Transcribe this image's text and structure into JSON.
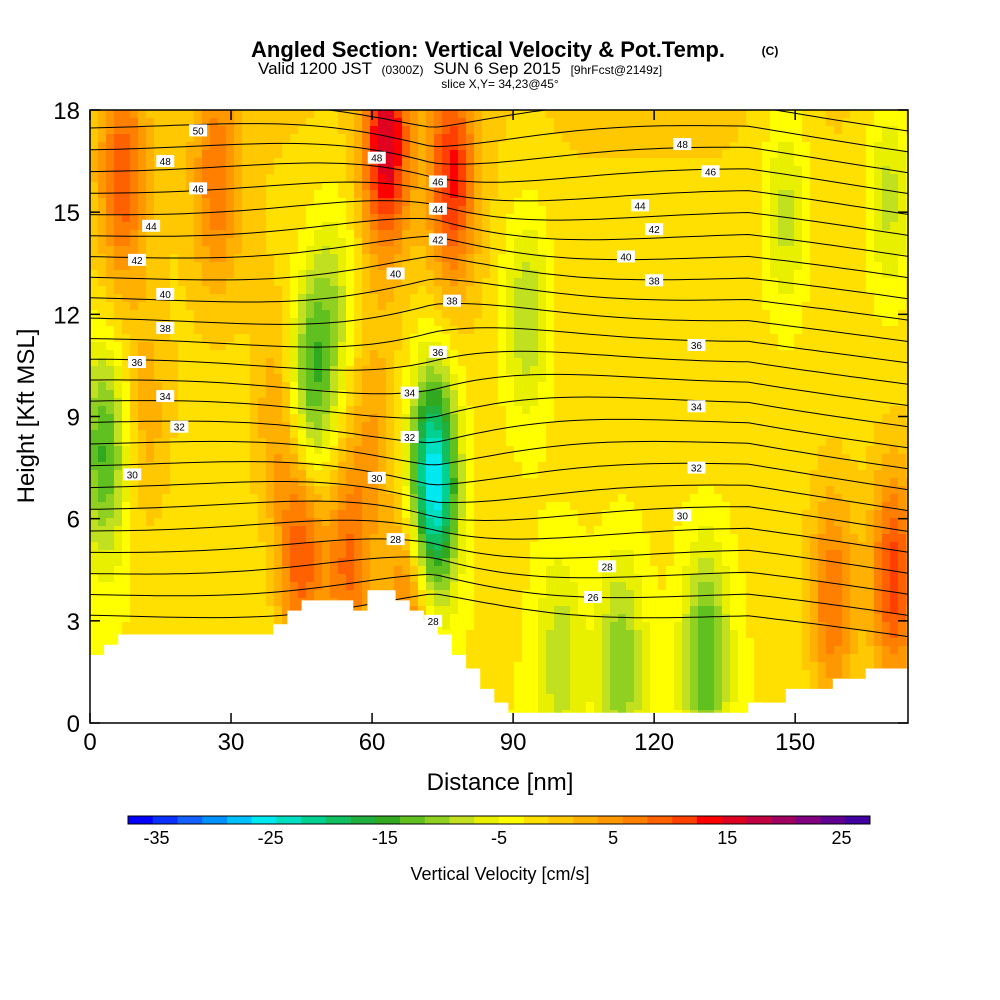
{
  "chart_data": {
    "type": "contour",
    "title": "Angled Section: Vertical Velocity & Pot.Temp.",
    "title_unit": "(C)",
    "subtitle": {
      "a": "Valid 1200 JST",
      "b": "(0300Z)",
      "c": "SUN 6 Sep 2015",
      "d": "[9hrFcst@2149z]"
    },
    "slice_label": "slice X,Y= 34,23@45°",
    "xlabel": "Distance [nm]",
    "ylabel": "Height [Kft MSL]",
    "xlim": [
      0,
      174
    ],
    "ylim": [
      0,
      18
    ],
    "x_ticks": [
      "0",
      "30",
      "60",
      "90",
      "120",
      "150"
    ],
    "y_ticks": [
      "0",
      "3",
      "6",
      "9",
      "12",
      "15",
      "18"
    ],
    "x_tick_values": [
      0,
      30,
      60,
      90,
      120,
      150
    ],
    "y_tick_values": [
      0,
      3,
      6,
      9,
      12,
      15,
      18
    ],
    "colorbar": {
      "label": "Vertical Velocity [cm/s]",
      "range": [
        -37.5,
        27.5
      ],
      "step": 2.5,
      "ticks": [
        "-35",
        "-25",
        "-15",
        "-5",
        "5",
        "15",
        "25"
      ],
      "tick_values": [
        -35,
        -25,
        -15,
        -5,
        5,
        15,
        25
      ],
      "colors": [
        "#0000ff",
        "#0a30ff",
        "#1460ff",
        "#0090ff",
        "#00c0ff",
        "#00e8f0",
        "#00e0c0",
        "#00d090",
        "#10c060",
        "#20b040",
        "#30a820",
        "#60c020",
        "#90d020",
        "#c0e020",
        "#e8f000",
        "#ffff00",
        "#ffe000",
        "#ffc800",
        "#ffb000",
        "#ff9800",
        "#ff8000",
        "#ff6000",
        "#ff4000",
        "#ff0000",
        "#e00020",
        "#c00040",
        "#a00060",
        "#800080",
        "#600090",
        "#4000a0"
      ]
    },
    "isentrope_labels": [
      "26",
      "28",
      "30",
      "32",
      "34",
      "36",
      "38",
      "40",
      "42",
      "44",
      "46",
      "48",
      "50"
    ],
    "isentrope_label_positions": [
      {
        "t": "50",
        "x": 23,
        "z": 17.4
      },
      {
        "t": "48",
        "x": 16,
        "z": 16.5
      },
      {
        "t": "46",
        "x": 23,
        "z": 15.7
      },
      {
        "t": "44",
        "x": 13,
        "z": 14.6
      },
      {
        "t": "42",
        "x": 10,
        "z": 13.6
      },
      {
        "t": "40",
        "x": 16,
        "z": 12.6
      },
      {
        "t": "38",
        "x": 16,
        "z": 11.6
      },
      {
        "t": "36",
        "x": 10,
        "z": 10.6
      },
      {
        "t": "34",
        "x": 16,
        "z": 9.6
      },
      {
        "t": "32",
        "x": 19,
        "z": 8.7
      },
      {
        "t": "30",
        "x": 9,
        "z": 7.3
      },
      {
        "t": "48",
        "x": 61,
        "z": 16.6
      },
      {
        "t": "46",
        "x": 74,
        "z": 15.9
      },
      {
        "t": "44",
        "x": 74,
        "z": 15.1
      },
      {
        "t": "42",
        "x": 74,
        "z": 14.2
      },
      {
        "t": "40",
        "x": 65,
        "z": 13.2
      },
      {
        "t": "38",
        "x": 77,
        "z": 12.4
      },
      {
        "t": "36",
        "x": 74,
        "z": 10.9
      },
      {
        "t": "34",
        "x": 68,
        "z": 9.7
      },
      {
        "t": "32",
        "x": 68,
        "z": 8.4
      },
      {
        "t": "30",
        "x": 61,
        "z": 7.2
      },
      {
        "t": "28",
        "x": 65,
        "z": 5.4
      },
      {
        "t": "28",
        "x": 73,
        "z": 3.0
      },
      {
        "t": "48",
        "x": 126,
        "z": 17.0
      },
      {
        "t": "46",
        "x": 132,
        "z": 16.2
      },
      {
        "t": "44",
        "x": 117,
        "z": 15.2
      },
      {
        "t": "42",
        "x": 120,
        "z": 14.5
      },
      {
        "t": "40",
        "x": 114,
        "z": 13.7
      },
      {
        "t": "38",
        "x": 120,
        "z": 13.0
      },
      {
        "t": "36",
        "x": 129,
        "z": 11.1
      },
      {
        "t": "34",
        "x": 129,
        "z": 9.3
      },
      {
        "t": "32",
        "x": 129,
        "z": 7.5
      },
      {
        "t": "30",
        "x": 126,
        "z": 6.1
      },
      {
        "t": "28",
        "x": 110,
        "z": 4.6
      },
      {
        "t": "26",
        "x": 107,
        "z": 3.7
      }
    ],
    "terrain": [
      [
        0,
        2.0
      ],
      [
        3,
        2.0
      ],
      [
        3,
        2.3
      ],
      [
        6,
        2.3
      ],
      [
        6,
        2.6
      ],
      [
        39,
        2.6
      ],
      [
        39,
        2.9
      ],
      [
        42,
        2.9
      ],
      [
        42,
        3.3
      ],
      [
        45,
        3.3
      ],
      [
        45,
        3.6
      ],
      [
        56,
        3.6
      ],
      [
        56,
        3.3
      ],
      [
        59,
        3.3
      ],
      [
        59,
        3.9
      ],
      [
        65,
        3.9
      ],
      [
        65,
        3.6
      ],
      [
        68,
        3.6
      ],
      [
        68,
        3.3
      ],
      [
        71,
        3.3
      ],
      [
        71,
        3.0
      ],
      [
        74,
        3.0
      ],
      [
        74,
        2.6
      ],
      [
        77,
        2.6
      ],
      [
        77,
        2.0
      ],
      [
        80,
        2.0
      ],
      [
        80,
        1.6
      ],
      [
        83,
        1.6
      ],
      [
        83,
        1.0
      ],
      [
        86,
        1.0
      ],
      [
        86,
        0.6
      ],
      [
        89,
        0.6
      ],
      [
        89,
        0.3
      ],
      [
        140,
        0.3
      ],
      [
        140,
        0.6
      ],
      [
        148,
        0.6
      ],
      [
        148,
        1.0
      ],
      [
        158,
        1.0
      ],
      [
        158,
        1.3
      ],
      [
        165,
        1.3
      ],
      [
        165,
        1.6
      ],
      [
        174,
        1.6
      ]
    ],
    "updraft_centers": [
      {
        "x": 7,
        "z": 16,
        "w": 12
      },
      {
        "x": 27,
        "z": 16,
        "w": 10
      },
      {
        "x": 63,
        "z": 17,
        "w": 20
      },
      {
        "x": 77,
        "z": 16,
        "w": 16
      },
      {
        "x": 45,
        "z": 5,
        "w": 14
      },
      {
        "x": 55,
        "z": 4.5,
        "w": 12
      },
      {
        "x": 68,
        "z": 3.5,
        "w": 12
      },
      {
        "x": 171,
        "z": 4.2,
        "w": 16
      },
      {
        "x": 158,
        "z": 3.5,
        "w": 12
      },
      {
        "x": 40,
        "z": 9,
        "w": 6
      },
      {
        "x": 60,
        "z": 8.5,
        "w": 6
      },
      {
        "x": 12,
        "z": 9,
        "w": 5
      }
    ],
    "downdraft_centers": [
      {
        "x": 3,
        "z": 8,
        "w": -14
      },
      {
        "x": 73,
        "z": 7,
        "w": -30
      },
      {
        "x": 47,
        "z": 10,
        "w": -14
      },
      {
        "x": 93,
        "z": 12,
        "w": -9
      },
      {
        "x": 148,
        "z": 15,
        "w": -8
      },
      {
        "x": 131,
        "z": 2,
        "w": -13
      },
      {
        "x": 113,
        "z": 1.8,
        "w": -10
      },
      {
        "x": 100,
        "z": 2,
        "w": -7
      },
      {
        "x": 170,
        "z": 15.5,
        "w": -8
      },
      {
        "x": 52,
        "z": 12.5,
        "w": -7
      }
    ],
    "isentrope_values": [
      26,
      27,
      28,
      29,
      30,
      31,
      32,
      33,
      34,
      35,
      36,
      37,
      38,
      39,
      40,
      41,
      42,
      43,
      44,
      45,
      46,
      47,
      48,
      49,
      50
    ]
  }
}
